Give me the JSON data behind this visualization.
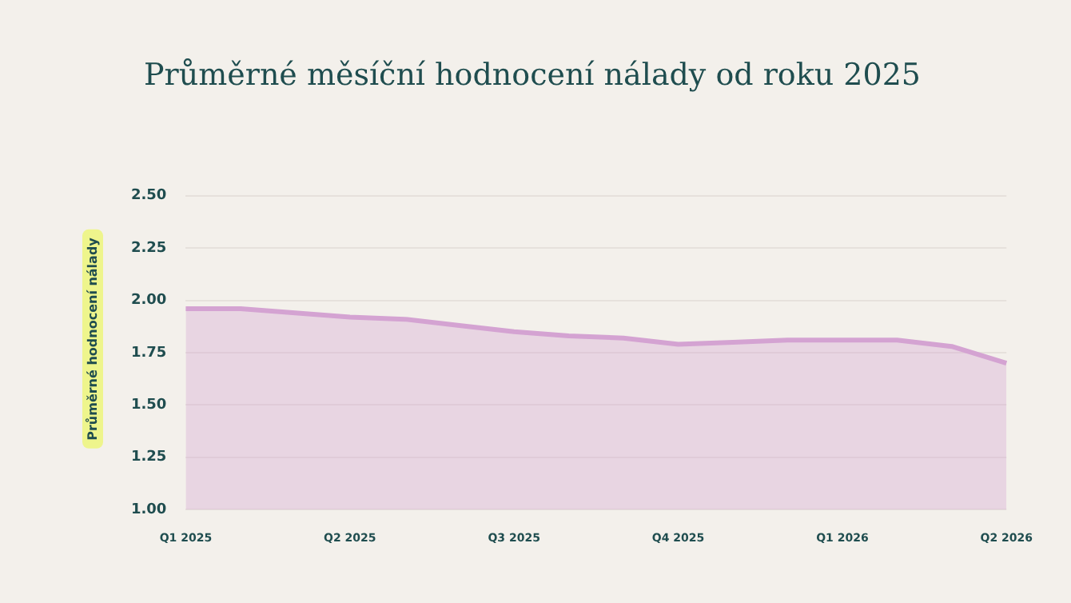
{
  "chart_data": {
    "type": "area",
    "title": "Průměrné měsíční hodnocení nálady od roku 2025",
    "ylabel": "Průměrné hodnocení nálady",
    "categories": [
      "Q1 2025",
      null,
      null,
      "Q2 2025",
      null,
      null,
      "Q3 2025",
      null,
      null,
      "Q4 2025",
      null,
      null,
      "Q1 2026",
      null,
      null,
      "Q2 2026"
    ],
    "series": [
      {
        "color": "#d4a3d2",
        "values": [
          1.96,
          1.96,
          1.94,
          1.92,
          1.91,
          1.88,
          1.85,
          1.83,
          1.82,
          1.79,
          1.8,
          1.81,
          1.81,
          1.81,
          1.78,
          1.7
        ]
      }
    ],
    "ylim": [
      1,
      2.5
    ],
    "yticks": [
      {
        "value": 1,
        "label": "1.00"
      },
      {
        "value": 1.25,
        "label": "1.25"
      },
      {
        "value": 1.5,
        "label": "1.50"
      },
      {
        "value": 1.75,
        "label": "1.75"
      },
      {
        "value": 2,
        "label": "2.00"
      },
      {
        "value": 2.25,
        "label": "2.25"
      },
      {
        "value": 2.5,
        "label": "2.50"
      }
    ],
    "grid": "y",
    "legend": false,
    "marker": "none",
    "line_style": "solid"
  }
}
